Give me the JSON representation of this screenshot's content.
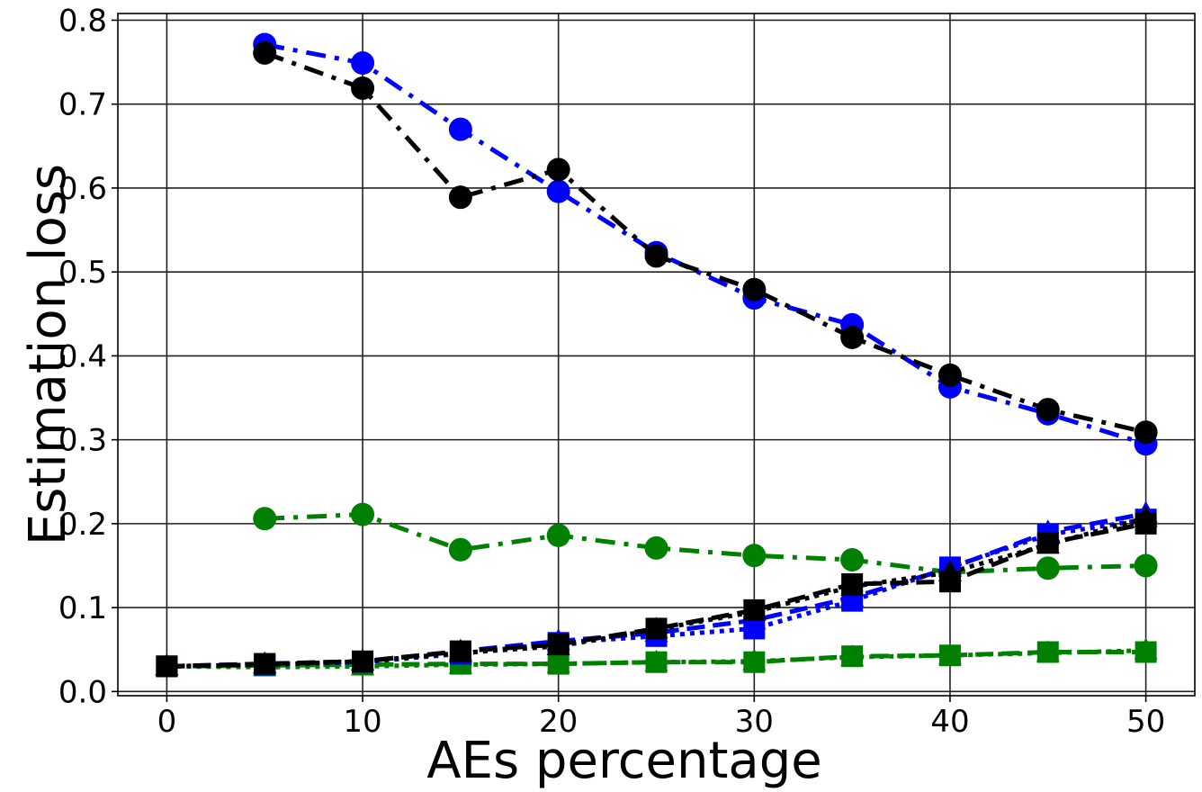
{
  "chart_data": {
    "type": "line",
    "title": "",
    "xlabel": "AEs percentage",
    "ylabel": "Estimation loss",
    "xlim": [
      -2.5,
      52.5
    ],
    "ylim": [
      -0.005,
      0.808
    ],
    "xticks": [
      0,
      10,
      20,
      30,
      40,
      50
    ],
    "yticks": [
      0.0,
      0.1,
      0.2,
      0.3,
      0.4,
      0.5,
      0.6,
      0.7,
      0.8
    ],
    "xtick_labels": [
      "0",
      "10",
      "20",
      "30",
      "40",
      "50"
    ],
    "ytick_labels": [
      "0.0",
      "0.1",
      "0.2",
      "0.3",
      "0.4",
      "0.5",
      "0.6",
      "0.7",
      "0.8"
    ],
    "grid": true,
    "legend": "none",
    "series": [
      {
        "color": "#008000",
        "dash": "dashdot",
        "marker": "circle",
        "x": [
          5,
          10,
          15,
          20,
          25,
          30,
          35,
          40,
          45,
          50
        ],
        "y": [
          0.206,
          0.211,
          0.169,
          0.186,
          0.171,
          0.162,
          0.157,
          0.142,
          0.147,
          0.15
        ]
      },
      {
        "color": "#008000",
        "dash": "dashed",
        "marker": "square",
        "x": [
          0,
          5,
          10,
          15,
          20,
          25,
          30,
          35,
          40,
          45,
          50
        ],
        "y": [
          0.03,
          0.031,
          0.032,
          0.033,
          0.033,
          0.035,
          0.035,
          0.042,
          0.043,
          0.047,
          0.047
        ]
      },
      {
        "color": "#008000",
        "dash": "dotted",
        "marker": "triangle",
        "x": [
          0,
          5,
          10,
          15,
          20,
          25,
          30,
          35,
          40,
          45,
          50
        ],
        "y": [
          0.03,
          0.029,
          0.03,
          0.032,
          0.033,
          0.035,
          0.036,
          0.041,
          0.043,
          0.046,
          0.049
        ]
      },
      {
        "color": "#0000ff",
        "dash": "dashdot",
        "marker": "circle",
        "x": [
          5,
          10,
          15,
          20,
          25,
          30,
          35,
          40,
          45,
          50
        ],
        "y": [
          0.771,
          0.749,
          0.67,
          0.596,
          0.523,
          0.469,
          0.437,
          0.363,
          0.331,
          0.295
        ]
      },
      {
        "color": "#0000ff",
        "dash": "dotted",
        "marker": "square",
        "x": [
          0,
          5,
          10,
          15,
          20,
          25,
          30,
          35,
          40,
          45,
          50
        ],
        "y": [
          0.03,
          0.032,
          0.035,
          0.045,
          0.058,
          0.066,
          0.075,
          0.108,
          0.148,
          0.187,
          0.205
        ]
      },
      {
        "color": "#0000ff",
        "dash": "dashed",
        "marker": "triangle",
        "x": [
          0,
          5,
          10,
          15,
          20,
          25,
          30,
          35,
          40,
          45,
          50
        ],
        "y": [
          0.03,
          0.033,
          0.036,
          0.048,
          0.06,
          0.07,
          0.085,
          0.112,
          0.147,
          0.19,
          0.212
        ]
      },
      {
        "color": "#000000",
        "dash": "dashdot",
        "marker": "circle",
        "x": [
          5,
          10,
          15,
          20,
          25,
          30,
          35,
          40,
          45,
          50
        ],
        "y": [
          0.761,
          0.719,
          0.589,
          0.622,
          0.519,
          0.479,
          0.422,
          0.377,
          0.336,
          0.309
        ]
      },
      {
        "color": "#000000",
        "dash": "dashed",
        "marker": "square",
        "x": [
          0,
          5,
          10,
          15,
          20,
          25,
          30,
          35,
          40,
          45,
          50
        ],
        "y": [
          0.03,
          0.033,
          0.036,
          0.048,
          0.056,
          0.075,
          0.097,
          0.128,
          0.131,
          0.177,
          0.2
        ]
      },
      {
        "color": "#000000",
        "dash": "dotted",
        "marker": "triangle",
        "x": [
          0,
          5,
          10,
          15,
          20,
          25,
          30,
          35,
          40,
          45,
          50
        ],
        "y": [
          0.03,
          0.032,
          0.036,
          0.046,
          0.054,
          0.074,
          0.095,
          0.125,
          0.142,
          0.175,
          0.207
        ]
      }
    ]
  }
}
